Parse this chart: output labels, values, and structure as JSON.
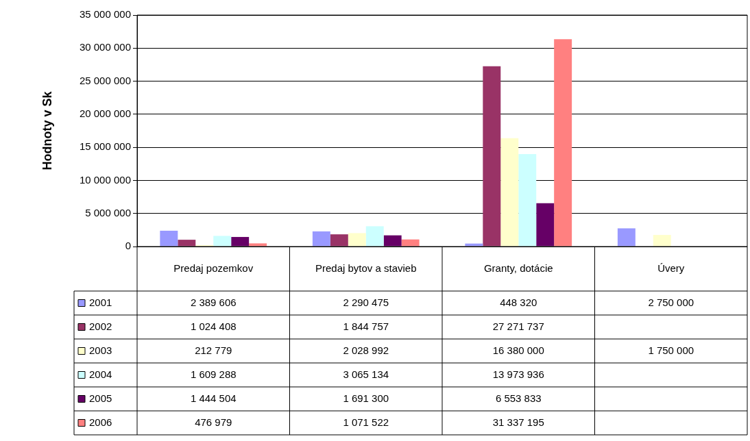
{
  "chart_data": {
    "type": "bar",
    "ylabel": "Hodnoty v Sk",
    "categories": [
      "Predaj pozemkov",
      "Predaj bytov a stavieb",
      "Granty, dotácie",
      "Úvery"
    ],
    "ylim": [
      0,
      35000000
    ],
    "yticks": [
      {
        "value": 0,
        "label": "0"
      },
      {
        "value": 5000000,
        "label": "5 000 000"
      },
      {
        "value": 10000000,
        "label": "10 000 000"
      },
      {
        "value": 15000000,
        "label": "15 000 000"
      },
      {
        "value": 20000000,
        "label": "20 000 000"
      },
      {
        "value": 25000000,
        "label": "25 000 000"
      },
      {
        "value": 30000000,
        "label": "30 000 000"
      },
      {
        "value": 35000000,
        "label": "35 000 000"
      }
    ],
    "grid": "y",
    "legend": "bottom left",
    "series": [
      {
        "name": "2001",
        "color": "#9999ff",
        "values": [
          2389606,
          2290475,
          448320,
          2750000
        ],
        "value_labels": [
          "2 389 606",
          "2 290 475",
          "448 320",
          "2 750 000"
        ]
      },
      {
        "name": "2002",
        "color": "#993366",
        "values": [
          1024408,
          1844757,
          27271737,
          null
        ],
        "value_labels": [
          "1 024 408",
          "1 844 757",
          "27 271 737",
          null
        ]
      },
      {
        "name": "2003",
        "color": "#ffffcc",
        "values": [
          212779,
          2028992,
          16380000,
          1750000
        ],
        "value_labels": [
          "212 779",
          "2 028 992",
          "16 380 000",
          "1 750 000"
        ]
      },
      {
        "name": "2004",
        "color": "#ccffff",
        "values": [
          1609288,
          3065134,
          13973936,
          null
        ],
        "value_labels": [
          "1 609 288",
          "3 065 134",
          "13 973 936",
          null
        ]
      },
      {
        "name": "2005",
        "color": "#660066",
        "values": [
          1444504,
          1691300,
          6553833,
          null
        ],
        "value_labels": [
          "1 444 504",
          "1 691 300",
          "6 553 833",
          null
        ]
      },
      {
        "name": "2006",
        "color": "#ff8080",
        "values": [
          476979,
          1071522,
          31337195,
          null
        ],
        "value_labels": [
          "476 979",
          "1 071 522",
          "31 337 195",
          null
        ]
      }
    ]
  }
}
